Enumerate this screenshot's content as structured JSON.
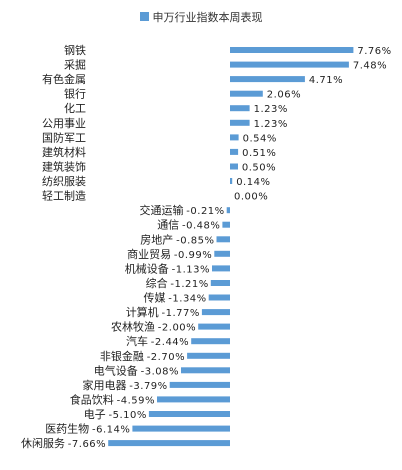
{
  "chart_data": {
    "type": "bar",
    "orientation": "horizontal",
    "legend": {
      "label": "申万行业指数本周表现",
      "placement": "top-center"
    },
    "color": "#5b9bd5",
    "unit": "%",
    "categories": [
      "钢铁",
      "采掘",
      "有色金属",
      "银行",
      "化工",
      "公用事业",
      "国防军工",
      "建筑材料",
      "建筑装饰",
      "纺织服装",
      "轻工制造",
      "交通运输",
      "通信",
      "房地产",
      "商业贸易",
      "机械设备",
      "综合",
      "传媒",
      "计算机",
      "农林牧渔",
      "汽车",
      "非银金融",
      "电气设备",
      "家用电器",
      "食品饮料",
      "电子",
      "医药生物",
      "休闲服务"
    ],
    "values": [
      7.76,
      7.48,
      4.71,
      2.06,
      1.23,
      1.23,
      0.54,
      0.51,
      0.5,
      0.14,
      0.0,
      -0.21,
      -0.48,
      -0.85,
      -0.99,
      -1.13,
      -1.21,
      -1.34,
      -1.77,
      -2.0,
      -2.44,
      -2.7,
      -3.08,
      -3.79,
      -4.59,
      -5.1,
      -6.14,
      -7.66
    ],
    "data_labels": [
      "7.76%",
      "7.48%",
      "4.71%",
      "2.06%",
      "1.23%",
      "1.23%",
      "0.54%",
      "0.51%",
      "0.50%",
      "0.14%",
      "0.00%",
      "-0.21%",
      "-0.48%",
      "-0.85%",
      "-0.99%",
      "-1.13%",
      "-1.21%",
      "-1.34%",
      "-1.77%",
      "-2.00%",
      "-2.44%",
      "-2.70%",
      "-3.08%",
      "-3.79%",
      "-4.59%",
      "-5.10%",
      "-6.14%",
      "-7.66%"
    ],
    "xlim": [
      -8,
      8
    ],
    "grid": false
  }
}
